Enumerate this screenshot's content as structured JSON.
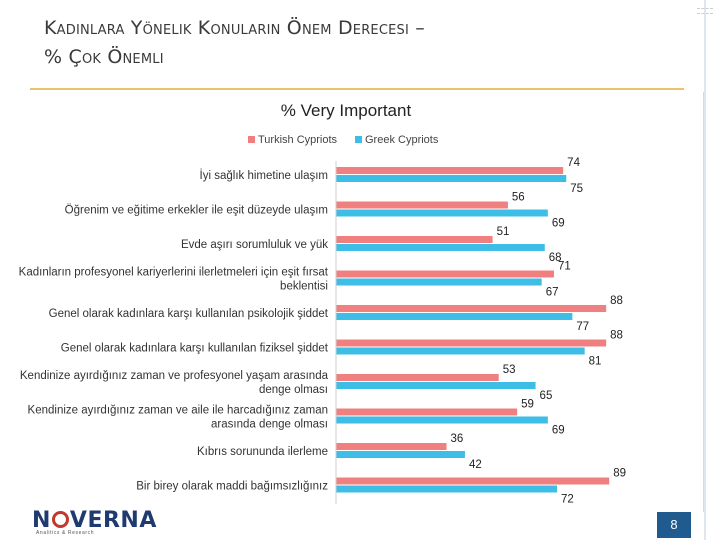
{
  "slide": {
    "title_line1": "Kadınlara Yönelik Konuların Önem Derecesi –",
    "title_line2": "% Çok Önemli",
    "page_number": "8",
    "logo_text": "NVERNA",
    "logo_sub": "Analitics & Research"
  },
  "colors": {
    "turkish": "#f08080",
    "greek": "#3ebde6",
    "title_rule": "#e8c36a"
  },
  "chart_data": {
    "type": "bar",
    "orientation": "horizontal",
    "title": "% Very Important",
    "legend_position": "top",
    "grid": false,
    "xlim": [
      0,
      100
    ],
    "categories": [
      "İyi sağlık himetine ulaşım",
      "Öğrenim ve eğitime erkekler ile eşit düzeyde ulaşım",
      "Evde aşırı sorumluluk ve yük",
      "Kadınların profesyonel kariyerlerini ilerletmeleri için eşit fırsat beklentisi",
      "Genel olarak kadınlara karşı kullanılan psikolojik şiddet",
      "Genel olarak kadınlara karşı kullanılan fiziksel şiddet",
      "Kendinize ayırdığınız zaman ve profesyonel yaşam arasında denge olması",
      "Kendinize ayırdığınız zaman ve aile ile harcadığınız zaman arasında denge olması",
      "Kıbrıs sorununda ilerleme",
      "Bir birey olarak maddi bağımsızlığınız"
    ],
    "category_lines": [
      [
        "İyi sağlık himetine ulaşım"
      ],
      [
        "Öğrenim ve eğitime erkekler ile eşit düzeyde ulaşım"
      ],
      [
        "Evde aşırı sorumluluk ve yük"
      ],
      [
        "Kadınların profesyonel kariyerlerini ilerletmeleri için eşit fırsat",
        "beklentisi"
      ],
      [
        "Genel olarak kadınlara karşı kullanılan psikolojik şiddet"
      ],
      [
        "Genel olarak kadınlara karşı kullanılan fiziksel şiddet"
      ],
      [
        "Kendinize ayırdığınız zaman ve profesyonel yaşam arasında",
        "denge olması"
      ],
      [
        "Kendinize ayırdığınız zaman ve aile ile harcadığınız zaman",
        "arasında denge olması"
      ],
      [
        "Kıbrıs sorununda ilerleme"
      ],
      [
        "Bir birey olarak maddi bağımsızlığınız"
      ]
    ],
    "series": [
      {
        "name": "Turkish Cypriots",
        "values": [
          74,
          56,
          51,
          71,
          88,
          88,
          53,
          59,
          36,
          89
        ]
      },
      {
        "name": "Greek Cypriots",
        "values": [
          75,
          69,
          68,
          67,
          77,
          81,
          65,
          69,
          42,
          72
        ]
      }
    ]
  }
}
